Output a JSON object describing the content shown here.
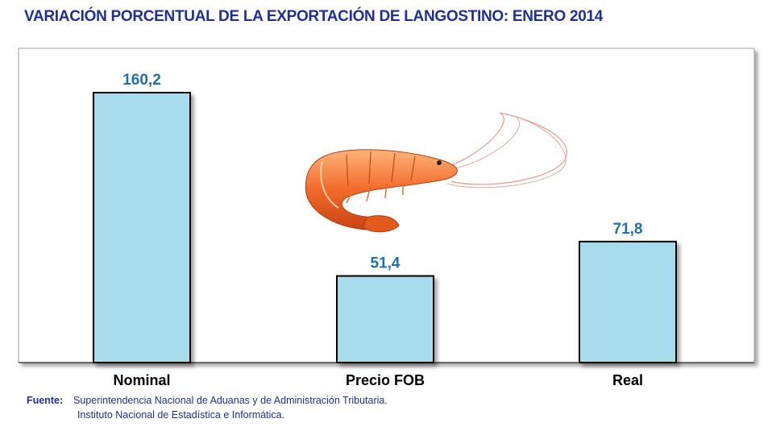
{
  "title": "VARIACIÓN PORCENTUAL DE LA EXPORTACIÓN DE LANGOSTINO: ENERO 2014",
  "chart_data": {
    "type": "bar",
    "categories": [
      "Nominal",
      "Precio FOB",
      "Real"
    ],
    "values": [
      160.2,
      51.4,
      71.8
    ],
    "value_labels": [
      "160,2",
      "51,4",
      "71,8"
    ],
    "ylim": [
      0,
      160.2
    ],
    "grid": false,
    "colors": {
      "bar_fill": "#a6dcec",
      "bar_stroke": "#000000",
      "value_text": "#1f6fb2"
    }
  },
  "image_icon": "shrimp-image",
  "source": {
    "label": "Fuente:",
    "line1": "Superintendencia Nacional de Aduanas y de Administración Tributaria.",
    "line2": "Instituto Nacional de Estadística e Informática."
  }
}
